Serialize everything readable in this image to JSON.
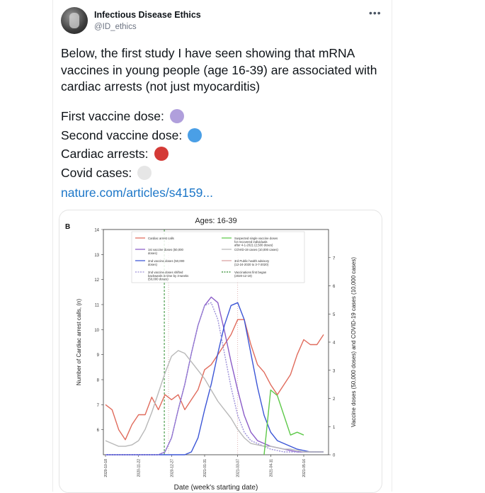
{
  "tweet": {
    "author_name": "Infectious Disease Ethics",
    "author_handle": "@ID_ethics",
    "more_label": "•••",
    "text": "Below, the first study I have seen showing that mRNA vaccines in young people (age 16-39) are associated with cardiac arrests (not just myocarditis)",
    "legend": [
      {
        "label": "First vaccine dose:",
        "color": "#b09fdc"
      },
      {
        "label": "Second vaccine dose:",
        "color": "#4a9fe6"
      },
      {
        "label": "Cardiac arrests:",
        "color": "#d43a36"
      },
      {
        "label": "Covid cases:",
        "color": "#e6e6e6"
      }
    ],
    "link": "nature.com/articles/s4159..."
  },
  "icons": {
    "avatar": "avatar-image",
    "more": "more-options-icon"
  },
  "chart_data": {
    "type": "line",
    "panel_label": "B",
    "title": "Ages: 16-39",
    "xlabel": "Date (week's starting date)",
    "ylabel_left": "Number of Cardiac arrest calls, (n)",
    "ylabel_right": "Vaccine doses (50,000 doses) and COVID-19 cases (10,000 cases)",
    "ylim_left": [
      5,
      14
    ],
    "ylim_right": [
      0,
      8
    ],
    "yticks_left": [
      "6",
      "7",
      "8",
      "9",
      "10",
      "11",
      "12",
      "13",
      "14"
    ],
    "yticks_right": [
      "0",
      "1",
      "2",
      "3",
      "4",
      "5",
      "6",
      "7"
    ],
    "xticks": [
      "2020-10-18",
      "2020-11-22",
      "2020-12-27",
      "2021-01-31",
      "2021-03-07",
      "2021-04-11",
      "2021-05-16"
    ],
    "x": [
      "2020-10-18",
      "2020-10-25",
      "2020-11-01",
      "2020-11-08",
      "2020-11-15",
      "2020-11-22",
      "2020-11-29",
      "2020-12-06",
      "2020-12-13",
      "2020-12-20",
      "2020-12-27",
      "2021-01-03",
      "2021-01-10",
      "2021-01-17",
      "2021-01-24",
      "2021-01-31",
      "2021-02-07",
      "2021-02-14",
      "2021-02-21",
      "2021-02-28",
      "2021-03-07",
      "2021-03-14",
      "2021-03-21",
      "2021-03-28",
      "2021-04-04",
      "2021-04-11",
      "2021-04-18",
      "2021-04-25",
      "2021-05-02",
      "2021-05-09",
      "2021-05-16",
      "2021-05-23",
      "2021-05-30",
      "2021-06-06"
    ],
    "series": [
      {
        "name": "Cardiac arrest calls",
        "color": "#e06b5c",
        "axis": "left",
        "values": [
          7.0,
          6.8,
          6.0,
          5.6,
          6.2,
          6.6,
          6.6,
          7.3,
          6.8,
          7.4,
          7.2,
          7.4,
          6.8,
          7.2,
          7.6,
          8.4,
          8.6,
          9.0,
          9.4,
          9.8,
          10.4,
          10.4,
          9.4,
          8.6,
          8.3,
          7.8,
          7.4,
          7.8,
          8.2,
          9.0,
          9.6,
          9.4,
          9.4,
          9.8
        ]
      },
      {
        "name": "1st vaccine doses (50,000 doses)",
        "color": "#8a5cc8",
        "axis": "right",
        "values": [
          0,
          0,
          0,
          0,
          0,
          0,
          0,
          0,
          0,
          0.1,
          0.6,
          1.6,
          2.5,
          3.6,
          4.6,
          5.3,
          5.6,
          5.4,
          4.4,
          3.3,
          2.3,
          1.4,
          0.8,
          0.5,
          0.4,
          0.3,
          0.25,
          0.2,
          0.15,
          0.1,
          0.1,
          0.1,
          0.1,
          0.1
        ]
      },
      {
        "name": "2nd vaccine doses (50,000 doses)",
        "color": "#3b55d6",
        "axis": "right",
        "values": [
          0,
          0,
          0,
          0,
          0,
          0,
          0,
          0,
          0,
          0,
          0,
          0,
          0,
          0.1,
          0.6,
          1.6,
          2.5,
          3.6,
          4.6,
          5.3,
          5.4,
          4.8,
          3.6,
          2.4,
          1.4,
          0.8,
          0.5,
          0.4,
          0.3,
          0.2,
          0.15,
          0.1,
          0.1,
          0.1
        ]
      },
      {
        "name": "2nd vaccine doses shifted backwards in time by 3-weeks (50,000 doses)",
        "color": "#9b8fd8",
        "axis": "right",
        "dashed": true,
        "values": [
          0,
          0,
          0,
          0,
          0,
          0,
          0,
          0,
          0,
          0.1,
          0.6,
          1.6,
          2.5,
          3.6,
          4.6,
          5.3,
          5.4,
          4.8,
          3.6,
          2.4,
          1.4,
          0.8,
          0.5,
          0.4,
          0.3,
          0.2,
          0.15,
          0.1,
          0.1,
          0.1,
          0.1,
          0.1,
          0.1,
          0.1
        ]
      },
      {
        "name": "COVID-19 cases (10,000 cases)",
        "color": "#b8b8b8",
        "axis": "right",
        "values": [
          0.5,
          0.4,
          0.3,
          0.3,
          0.35,
          0.5,
          0.9,
          1.5,
          2.2,
          2.9,
          3.5,
          3.7,
          3.6,
          3.3,
          3.0,
          2.7,
          2.3,
          1.9,
          1.6,
          1.3,
          0.9,
          0.6,
          0.4,
          0.35,
          0.3,
          0.3,
          0.25,
          0.2,
          0.2,
          0.15,
          0.1,
          0.1,
          0.1,
          0.1
        ]
      },
      {
        "name": "Suspected single vaccine doses for recovered individuals after 4-1-2021 (2,500 doses)",
        "color": "#5ec94a",
        "axis": "right",
        "values": [
          null,
          null,
          null,
          null,
          null,
          null,
          null,
          null,
          null,
          null,
          null,
          null,
          null,
          null,
          null,
          null,
          null,
          null,
          null,
          null,
          null,
          null,
          null,
          null,
          0.0,
          2.3,
          2.1,
          1.4,
          0.7,
          0.8,
          0.7,
          null,
          null,
          null
        ]
      }
    ],
    "annotations": [
      {
        "name": "3rd Public health advisory (12-24-2020 to 3-7-2020)",
        "color": "#d9a1a1"
      },
      {
        "name": "Vaccinations first began (2020-12-19)",
        "color": "#2e8b2e"
      }
    ],
    "legend_placement": "top-center",
    "legend_labels": [
      {
        "text": "Cardiac arrest calls",
        "color": "#e06b5c",
        "style": "solid"
      },
      {
        "text": "1st vaccine doses (50,000 doses)",
        "color": "#8a5cc8",
        "style": "solid"
      },
      {
        "text": "2nd vaccine doses (50,000 doses)",
        "color": "#3b55d6",
        "style": "solid"
      },
      {
        "text": "2nd vaccine doses shifted backwards in time by 3-weeks (50,000 doses)",
        "color": "#9b8fd8",
        "style": "dashed"
      },
      {
        "text": "Suspected single vaccine doses for recovered individuals after 4-1-2021 (2,500 doses)",
        "color": "#5ec94a",
        "style": "solid"
      },
      {
        "text": "COVID-19 cases (10,000 cases)",
        "color": "#b8b8b8",
        "style": "solid"
      },
      {
        "text": "3rd Public health advisory (12-24-2020 to 3-7-2020)",
        "color": "#d9a1a1",
        "style": "solid"
      },
      {
        "text": "Vaccinations first began (2020-12-19)",
        "color": "#2e8b2e",
        "style": "dashed"
      }
    ]
  }
}
